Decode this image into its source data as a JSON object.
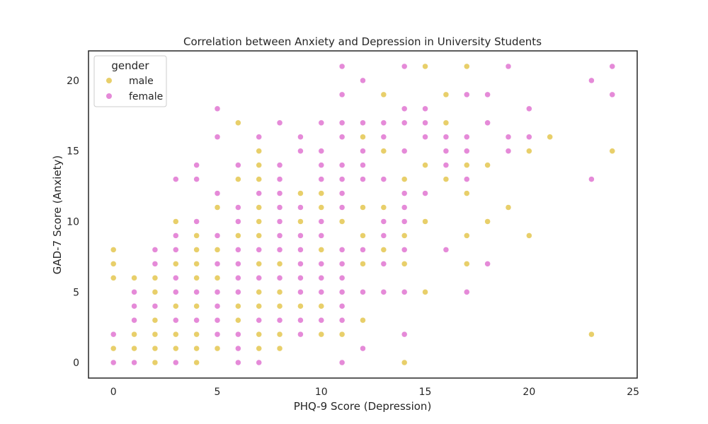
{
  "chart_data": {
    "type": "scatter",
    "title": "Correlation between Anxiety and Depression in University Students",
    "xlabel": "PHQ-9 Score (Depression)",
    "ylabel": "GAD-7 Score (Anxiety)",
    "xlim": [
      -1.2,
      25.2
    ],
    "ylim": [
      -1.1,
      22.1
    ],
    "xticks": [
      0,
      5,
      10,
      15,
      20,
      25
    ],
    "yticks": [
      0,
      5,
      10,
      15,
      20
    ],
    "grid": false,
    "legend": {
      "title": "gender",
      "position": "top-left",
      "entries": [
        {
          "name": "male",
          "color": "#e8cf6a"
        },
        {
          "name": "female",
          "color": "#e58ad8"
        }
      ]
    },
    "points": [
      {
        "x": 0,
        "y": 8,
        "gender": "male"
      },
      {
        "x": 0,
        "y": 7,
        "gender": "male"
      },
      {
        "x": 0,
        "y": 6,
        "gender": "male"
      },
      {
        "x": 0,
        "y": 2,
        "gender": "female"
      },
      {
        "x": 0,
        "y": 1,
        "gender": "male"
      },
      {
        "x": 0,
        "y": 0,
        "gender": "female"
      },
      {
        "x": 1,
        "y": 6,
        "gender": "male"
      },
      {
        "x": 1,
        "y": 5,
        "gender": "female"
      },
      {
        "x": 1,
        "y": 4,
        "gender": "female"
      },
      {
        "x": 1,
        "y": 3,
        "gender": "female"
      },
      {
        "x": 1,
        "y": 2,
        "gender": "male"
      },
      {
        "x": 1,
        "y": 1,
        "gender": "male"
      },
      {
        "x": 1,
        "y": 0,
        "gender": "female"
      },
      {
        "x": 2,
        "y": 8,
        "gender": "female"
      },
      {
        "x": 2,
        "y": 7,
        "gender": "female"
      },
      {
        "x": 2,
        "y": 6,
        "gender": "male"
      },
      {
        "x": 2,
        "y": 5,
        "gender": "male"
      },
      {
        "x": 2,
        "y": 4,
        "gender": "female"
      },
      {
        "x": 2,
        "y": 3,
        "gender": "male"
      },
      {
        "x": 2,
        "y": 2,
        "gender": "male"
      },
      {
        "x": 2,
        "y": 1,
        "gender": "male"
      },
      {
        "x": 2,
        "y": 0,
        "gender": "male"
      },
      {
        "x": 3,
        "y": 13,
        "gender": "female"
      },
      {
        "x": 3,
        "y": 10,
        "gender": "male"
      },
      {
        "x": 3,
        "y": 9,
        "gender": "female"
      },
      {
        "x": 3,
        "y": 8,
        "gender": "female"
      },
      {
        "x": 3,
        "y": 7,
        "gender": "male"
      },
      {
        "x": 3,
        "y": 6,
        "gender": "female"
      },
      {
        "x": 3,
        "y": 5,
        "gender": "female"
      },
      {
        "x": 3,
        "y": 4,
        "gender": "male"
      },
      {
        "x": 3,
        "y": 3,
        "gender": "female"
      },
      {
        "x": 3,
        "y": 2,
        "gender": "male"
      },
      {
        "x": 3,
        "y": 1,
        "gender": "male"
      },
      {
        "x": 3,
        "y": 0,
        "gender": "female"
      },
      {
        "x": 4,
        "y": 14,
        "gender": "female"
      },
      {
        "x": 4,
        "y": 13,
        "gender": "female"
      },
      {
        "x": 4,
        "y": 10,
        "gender": "female"
      },
      {
        "x": 4,
        "y": 9,
        "gender": "male"
      },
      {
        "x": 4,
        "y": 8,
        "gender": "male"
      },
      {
        "x": 4,
        "y": 7,
        "gender": "male"
      },
      {
        "x": 4,
        "y": 6,
        "gender": "male"
      },
      {
        "x": 4,
        "y": 5,
        "gender": "female"
      },
      {
        "x": 4,
        "y": 4,
        "gender": "male"
      },
      {
        "x": 4,
        "y": 3,
        "gender": "female"
      },
      {
        "x": 4,
        "y": 2,
        "gender": "male"
      },
      {
        "x": 4,
        "y": 1,
        "gender": "male"
      },
      {
        "x": 4,
        "y": 0,
        "gender": "male"
      },
      {
        "x": 5,
        "y": 18,
        "gender": "female"
      },
      {
        "x": 5,
        "y": 16,
        "gender": "female"
      },
      {
        "x": 5,
        "y": 12,
        "gender": "female"
      },
      {
        "x": 5,
        "y": 11,
        "gender": "male"
      },
      {
        "x": 5,
        "y": 9,
        "gender": "female"
      },
      {
        "x": 5,
        "y": 8,
        "gender": "male"
      },
      {
        "x": 5,
        "y": 7,
        "gender": "female"
      },
      {
        "x": 5,
        "y": 6,
        "gender": "male"
      },
      {
        "x": 5,
        "y": 5,
        "gender": "female"
      },
      {
        "x": 5,
        "y": 4,
        "gender": "female"
      },
      {
        "x": 5,
        "y": 3,
        "gender": "female"
      },
      {
        "x": 5,
        "y": 2,
        "gender": "female"
      },
      {
        "x": 5,
        "y": 1,
        "gender": "male"
      },
      {
        "x": 6,
        "y": 17,
        "gender": "male"
      },
      {
        "x": 6,
        "y": 14,
        "gender": "female"
      },
      {
        "x": 6,
        "y": 13,
        "gender": "male"
      },
      {
        "x": 6,
        "y": 11,
        "gender": "female"
      },
      {
        "x": 6,
        "y": 10,
        "gender": "female"
      },
      {
        "x": 6,
        "y": 9,
        "gender": "male"
      },
      {
        "x": 6,
        "y": 8,
        "gender": "female"
      },
      {
        "x": 6,
        "y": 7,
        "gender": "female"
      },
      {
        "x": 6,
        "y": 6,
        "gender": "female"
      },
      {
        "x": 6,
        "y": 5,
        "gender": "female"
      },
      {
        "x": 6,
        "y": 4,
        "gender": "male"
      },
      {
        "x": 6,
        "y": 3,
        "gender": "male"
      },
      {
        "x": 6,
        "y": 2,
        "gender": "female"
      },
      {
        "x": 6,
        "y": 1,
        "gender": "female"
      },
      {
        "x": 6,
        "y": 0,
        "gender": "female"
      },
      {
        "x": 7,
        "y": 16,
        "gender": "female"
      },
      {
        "x": 7,
        "y": 15,
        "gender": "male"
      },
      {
        "x": 7,
        "y": 14,
        "gender": "male"
      },
      {
        "x": 7,
        "y": 13,
        "gender": "male"
      },
      {
        "x": 7,
        "y": 12,
        "gender": "female"
      },
      {
        "x": 7,
        "y": 11,
        "gender": "male"
      },
      {
        "x": 7,
        "y": 10,
        "gender": "male"
      },
      {
        "x": 7,
        "y": 9,
        "gender": "male"
      },
      {
        "x": 7,
        "y": 8,
        "gender": "female"
      },
      {
        "x": 7,
        "y": 7,
        "gender": "male"
      },
      {
        "x": 7,
        "y": 6,
        "gender": "female"
      },
      {
        "x": 7,
        "y": 5,
        "gender": "male"
      },
      {
        "x": 7,
        "y": 4,
        "gender": "male"
      },
      {
        "x": 7,
        "y": 3,
        "gender": "female"
      },
      {
        "x": 7,
        "y": 2,
        "gender": "male"
      },
      {
        "x": 7,
        "y": 1,
        "gender": "male"
      },
      {
        "x": 7,
        "y": 0,
        "gender": "female"
      },
      {
        "x": 8,
        "y": 17,
        "gender": "female"
      },
      {
        "x": 8,
        "y": 14,
        "gender": "female"
      },
      {
        "x": 8,
        "y": 13,
        "gender": "female"
      },
      {
        "x": 8,
        "y": 12,
        "gender": "female"
      },
      {
        "x": 8,
        "y": 11,
        "gender": "female"
      },
      {
        "x": 8,
        "y": 10,
        "gender": "female"
      },
      {
        "x": 8,
        "y": 9,
        "gender": "female"
      },
      {
        "x": 8,
        "y": 8,
        "gender": "female"
      },
      {
        "x": 8,
        "y": 7,
        "gender": "male"
      },
      {
        "x": 8,
        "y": 6,
        "gender": "female"
      },
      {
        "x": 8,
        "y": 5,
        "gender": "male"
      },
      {
        "x": 8,
        "y": 4,
        "gender": "male"
      },
      {
        "x": 8,
        "y": 3,
        "gender": "female"
      },
      {
        "x": 8,
        "y": 2,
        "gender": "male"
      },
      {
        "x": 8,
        "y": 1,
        "gender": "male"
      },
      {
        "x": 9,
        "y": 16,
        "gender": "female"
      },
      {
        "x": 9,
        "y": 15,
        "gender": "female"
      },
      {
        "x": 9,
        "y": 12,
        "gender": "male"
      },
      {
        "x": 9,
        "y": 11,
        "gender": "female"
      },
      {
        "x": 9,
        "y": 10,
        "gender": "male"
      },
      {
        "x": 9,
        "y": 9,
        "gender": "female"
      },
      {
        "x": 9,
        "y": 8,
        "gender": "female"
      },
      {
        "x": 9,
        "y": 7,
        "gender": "female"
      },
      {
        "x": 9,
        "y": 6,
        "gender": "female"
      },
      {
        "x": 9,
        "y": 5,
        "gender": "female"
      },
      {
        "x": 9,
        "y": 4,
        "gender": "male"
      },
      {
        "x": 9,
        "y": 3,
        "gender": "female"
      },
      {
        "x": 9,
        "y": 2,
        "gender": "female"
      },
      {
        "x": 10,
        "y": 17,
        "gender": "female"
      },
      {
        "x": 10,
        "y": 15,
        "gender": "female"
      },
      {
        "x": 10,
        "y": 14,
        "gender": "female"
      },
      {
        "x": 10,
        "y": 13,
        "gender": "female"
      },
      {
        "x": 10,
        "y": 12,
        "gender": "male"
      },
      {
        "x": 10,
        "y": 11,
        "gender": "male"
      },
      {
        "x": 10,
        "y": 10,
        "gender": "female"
      },
      {
        "x": 10,
        "y": 9,
        "gender": "female"
      },
      {
        "x": 10,
        "y": 8,
        "gender": "male"
      },
      {
        "x": 10,
        "y": 7,
        "gender": "female"
      },
      {
        "x": 10,
        "y": 6,
        "gender": "female"
      },
      {
        "x": 10,
        "y": 5,
        "gender": "female"
      },
      {
        "x": 10,
        "y": 4,
        "gender": "male"
      },
      {
        "x": 10,
        "y": 3,
        "gender": "female"
      },
      {
        "x": 10,
        "y": 2,
        "gender": "male"
      },
      {
        "x": 11,
        "y": 21,
        "gender": "female"
      },
      {
        "x": 11,
        "y": 19,
        "gender": "female"
      },
      {
        "x": 11,
        "y": 17,
        "gender": "female"
      },
      {
        "x": 11,
        "y": 16,
        "gender": "female"
      },
      {
        "x": 11,
        "y": 14,
        "gender": "female"
      },
      {
        "x": 11,
        "y": 13,
        "gender": "female"
      },
      {
        "x": 11,
        "y": 12,
        "gender": "female"
      },
      {
        "x": 11,
        "y": 11,
        "gender": "female"
      },
      {
        "x": 11,
        "y": 10,
        "gender": "male"
      },
      {
        "x": 11,
        "y": 8,
        "gender": "female"
      },
      {
        "x": 11,
        "y": 7,
        "gender": "female"
      },
      {
        "x": 11,
        "y": 6,
        "gender": "female"
      },
      {
        "x": 11,
        "y": 5,
        "gender": "female"
      },
      {
        "x": 11,
        "y": 4,
        "gender": "female"
      },
      {
        "x": 11,
        "y": 3,
        "gender": "female"
      },
      {
        "x": 11,
        "y": 2,
        "gender": "male"
      },
      {
        "x": 11,
        "y": 0,
        "gender": "female"
      },
      {
        "x": 12,
        "y": 20,
        "gender": "female"
      },
      {
        "x": 12,
        "y": 17,
        "gender": "female"
      },
      {
        "x": 12,
        "y": 16,
        "gender": "male"
      },
      {
        "x": 12,
        "y": 15,
        "gender": "female"
      },
      {
        "x": 12,
        "y": 14,
        "gender": "female"
      },
      {
        "x": 12,
        "y": 13,
        "gender": "female"
      },
      {
        "x": 12,
        "y": 11,
        "gender": "male"
      },
      {
        "x": 12,
        "y": 9,
        "gender": "male"
      },
      {
        "x": 12,
        "y": 8,
        "gender": "female"
      },
      {
        "x": 12,
        "y": 7,
        "gender": "male"
      },
      {
        "x": 12,
        "y": 5,
        "gender": "female"
      },
      {
        "x": 12,
        "y": 3,
        "gender": "male"
      },
      {
        "x": 12,
        "y": 1,
        "gender": "female"
      },
      {
        "x": 13,
        "y": 19,
        "gender": "male"
      },
      {
        "x": 13,
        "y": 17,
        "gender": "female"
      },
      {
        "x": 13,
        "y": 16,
        "gender": "female"
      },
      {
        "x": 13,
        "y": 15,
        "gender": "male"
      },
      {
        "x": 13,
        "y": 13,
        "gender": "female"
      },
      {
        "x": 13,
        "y": 11,
        "gender": "male"
      },
      {
        "x": 13,
        "y": 10,
        "gender": "female"
      },
      {
        "x": 13,
        "y": 9,
        "gender": "female"
      },
      {
        "x": 13,
        "y": 8,
        "gender": "male"
      },
      {
        "x": 13,
        "y": 7,
        "gender": "female"
      },
      {
        "x": 13,
        "y": 5,
        "gender": "female"
      },
      {
        "x": 14,
        "y": 21,
        "gender": "female"
      },
      {
        "x": 14,
        "y": 18,
        "gender": "female"
      },
      {
        "x": 14,
        "y": 17,
        "gender": "female"
      },
      {
        "x": 14,
        "y": 15,
        "gender": "female"
      },
      {
        "x": 14,
        "y": 13,
        "gender": "male"
      },
      {
        "x": 14,
        "y": 12,
        "gender": "female"
      },
      {
        "x": 14,
        "y": 11,
        "gender": "female"
      },
      {
        "x": 14,
        "y": 10,
        "gender": "female"
      },
      {
        "x": 14,
        "y": 9,
        "gender": "male"
      },
      {
        "x": 14,
        "y": 8,
        "gender": "female"
      },
      {
        "x": 14,
        "y": 7,
        "gender": "male"
      },
      {
        "x": 14,
        "y": 5,
        "gender": "female"
      },
      {
        "x": 14,
        "y": 2,
        "gender": "female"
      },
      {
        "x": 14,
        "y": 0,
        "gender": "male"
      },
      {
        "x": 15,
        "y": 21,
        "gender": "male"
      },
      {
        "x": 15,
        "y": 18,
        "gender": "female"
      },
      {
        "x": 15,
        "y": 17,
        "gender": "female"
      },
      {
        "x": 15,
        "y": 16,
        "gender": "female"
      },
      {
        "x": 15,
        "y": 14,
        "gender": "male"
      },
      {
        "x": 15,
        "y": 12,
        "gender": "female"
      },
      {
        "x": 15,
        "y": 10,
        "gender": "male"
      },
      {
        "x": 15,
        "y": 5,
        "gender": "male"
      },
      {
        "x": 16,
        "y": 19,
        "gender": "male"
      },
      {
        "x": 16,
        "y": 17,
        "gender": "male"
      },
      {
        "x": 16,
        "y": 16,
        "gender": "female"
      },
      {
        "x": 16,
        "y": 15,
        "gender": "female"
      },
      {
        "x": 16,
        "y": 14,
        "gender": "female"
      },
      {
        "x": 16,
        "y": 13,
        "gender": "male"
      },
      {
        "x": 16,
        "y": 8,
        "gender": "female"
      },
      {
        "x": 17,
        "y": 21,
        "gender": "male"
      },
      {
        "x": 17,
        "y": 19,
        "gender": "female"
      },
      {
        "x": 17,
        "y": 16,
        "gender": "female"
      },
      {
        "x": 17,
        "y": 15,
        "gender": "female"
      },
      {
        "x": 17,
        "y": 14,
        "gender": "male"
      },
      {
        "x": 17,
        "y": 13,
        "gender": "female"
      },
      {
        "x": 17,
        "y": 12,
        "gender": "male"
      },
      {
        "x": 17,
        "y": 9,
        "gender": "male"
      },
      {
        "x": 17,
        "y": 7,
        "gender": "male"
      },
      {
        "x": 17,
        "y": 5,
        "gender": "female"
      },
      {
        "x": 18,
        "y": 19,
        "gender": "female"
      },
      {
        "x": 18,
        "y": 17,
        "gender": "female"
      },
      {
        "x": 18,
        "y": 14,
        "gender": "male"
      },
      {
        "x": 18,
        "y": 10,
        "gender": "male"
      },
      {
        "x": 18,
        "y": 7,
        "gender": "female"
      },
      {
        "x": 19,
        "y": 21,
        "gender": "female"
      },
      {
        "x": 19,
        "y": 16,
        "gender": "female"
      },
      {
        "x": 19,
        "y": 15,
        "gender": "female"
      },
      {
        "x": 19,
        "y": 11,
        "gender": "male"
      },
      {
        "x": 20,
        "y": 18,
        "gender": "female"
      },
      {
        "x": 20,
        "y": 16,
        "gender": "female"
      },
      {
        "x": 20,
        "y": 15,
        "gender": "male"
      },
      {
        "x": 20,
        "y": 9,
        "gender": "male"
      },
      {
        "x": 21,
        "y": 16,
        "gender": "male"
      },
      {
        "x": 23,
        "y": 20,
        "gender": "female"
      },
      {
        "x": 23,
        "y": 13,
        "gender": "female"
      },
      {
        "x": 23,
        "y": 2,
        "gender": "male"
      },
      {
        "x": 24,
        "y": 21,
        "gender": "female"
      },
      {
        "x": 24,
        "y": 19,
        "gender": "female"
      },
      {
        "x": 24,
        "y": 15,
        "gender": "male"
      }
    ]
  }
}
